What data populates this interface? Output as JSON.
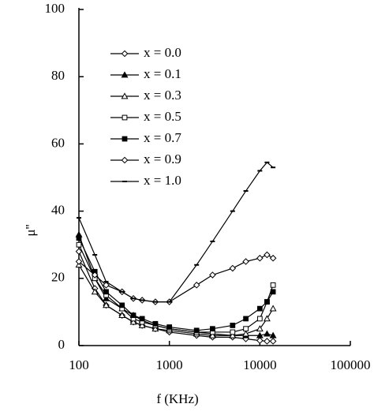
{
  "chart_data": {
    "type": "line",
    "x_label": "f (KHz)",
    "y_label": "μ''",
    "x": [
      100,
      150,
      200,
      300,
      400,
      500,
      700,
      1000,
      2000,
      3000,
      5000,
      7000,
      10000,
      12000,
      14000
    ],
    "xlim": [
      100,
      100000
    ],
    "xticks": [
      100,
      1000,
      10000,
      100000
    ],
    "log_x": true,
    "ylim": [
      0,
      100
    ],
    "yticks": [
      0,
      20,
      40,
      60,
      80,
      100
    ],
    "grid": false,
    "legend": "upper left",
    "series": [
      {
        "name": "x = 0.0",
        "color": "#000000",
        "marker": "diamond-open",
        "values": [
          28,
          17,
          12,
          9,
          7,
          6,
          5,
          4,
          3,
          2.5,
          2.5,
          2,
          1.5,
          1.3,
          1.3
        ]
      },
      {
        "name": "x = 0.1",
        "color": "#000000",
        "marker": "triangle-filled",
        "values": [
          33,
          20,
          14,
          11,
          9,
          7.5,
          6,
          5,
          4,
          3.5,
          3,
          3,
          3,
          3.5,
          3
        ]
      },
      {
        "name": "x = 0.3",
        "color": "#000000",
        "marker": "triangle-open",
        "values": [
          24,
          16,
          12,
          9,
          7,
          6,
          5,
          4.5,
          3.5,
          3,
          3,
          3.5,
          5,
          8,
          11
        ]
      },
      {
        "name": "x = 0.5",
        "color": "#000000",
        "marker": "square-open",
        "values": [
          30,
          20,
          15,
          11,
          8,
          7,
          6,
          5,
          4,
          4,
          4,
          5,
          8,
          13,
          18
        ]
      },
      {
        "name": "x = 0.7",
        "color": "#000000",
        "marker": "square-filled",
        "values": [
          32,
          22,
          16,
          12,
          9,
          8,
          6.5,
          5.5,
          4.5,
          5,
          6,
          8,
          11,
          13,
          16
        ]
      },
      {
        "name": "x = 0.9",
        "color": "#000000",
        "marker": "diamond-open",
        "values": [
          25,
          21,
          18,
          16,
          14,
          13.5,
          13,
          13,
          18,
          21,
          23,
          25,
          26,
          27,
          26
        ]
      },
      {
        "name": "x = 1.0",
        "color": "#000000",
        "marker": "dash",
        "values": [
          38,
          27,
          19,
          16,
          14,
          13.5,
          13,
          13,
          24,
          31,
          40,
          46,
          52,
          54.5,
          53
        ]
      }
    ]
  }
}
